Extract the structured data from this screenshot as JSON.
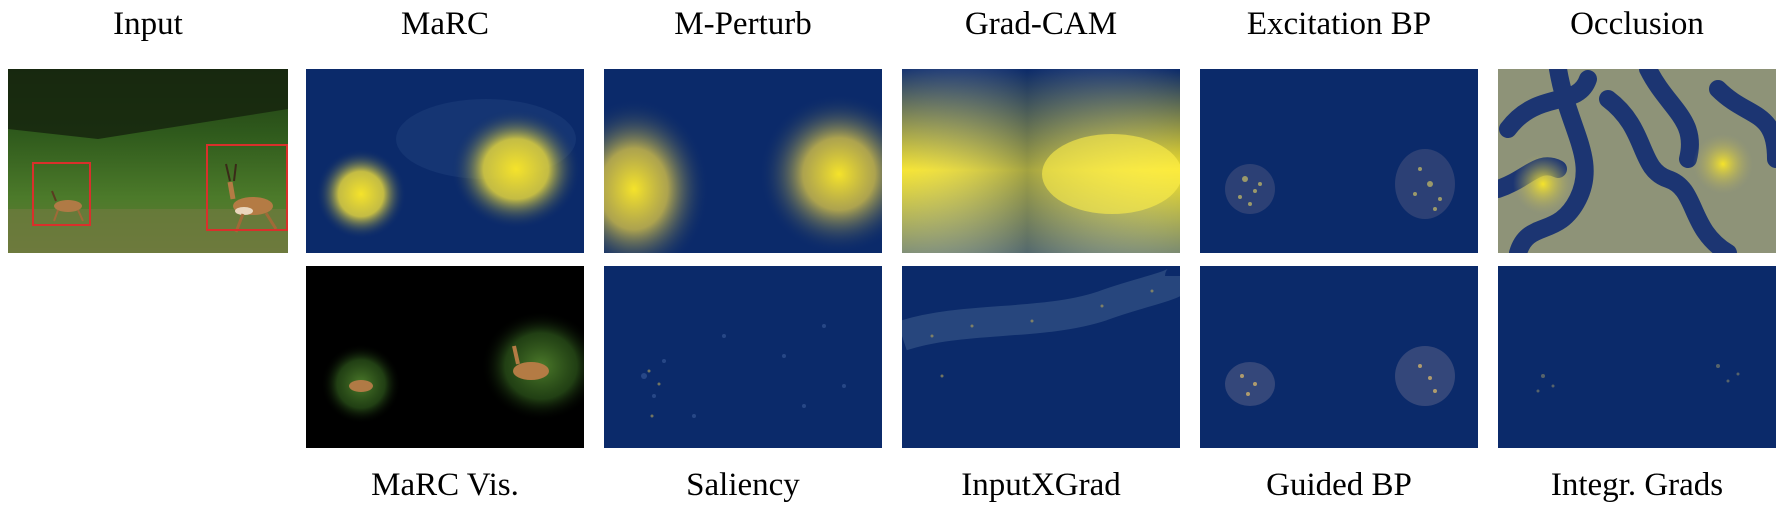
{
  "top_labels": [
    "Input",
    "MaRC",
    "M-Perturb",
    "Grad-CAM",
    "Excitation BP",
    "Occlusion"
  ],
  "bottom_labels": [
    "MaRC Vis.",
    "Saliency",
    "InputXGrad",
    "Guided BP",
    "Integr. Grads"
  ],
  "colors": {
    "heatmap_low": "#0b2a6a",
    "heatmap_high": "#f5e32a",
    "bbox": "#d9302b",
    "grass": "#3d6a22"
  }
}
